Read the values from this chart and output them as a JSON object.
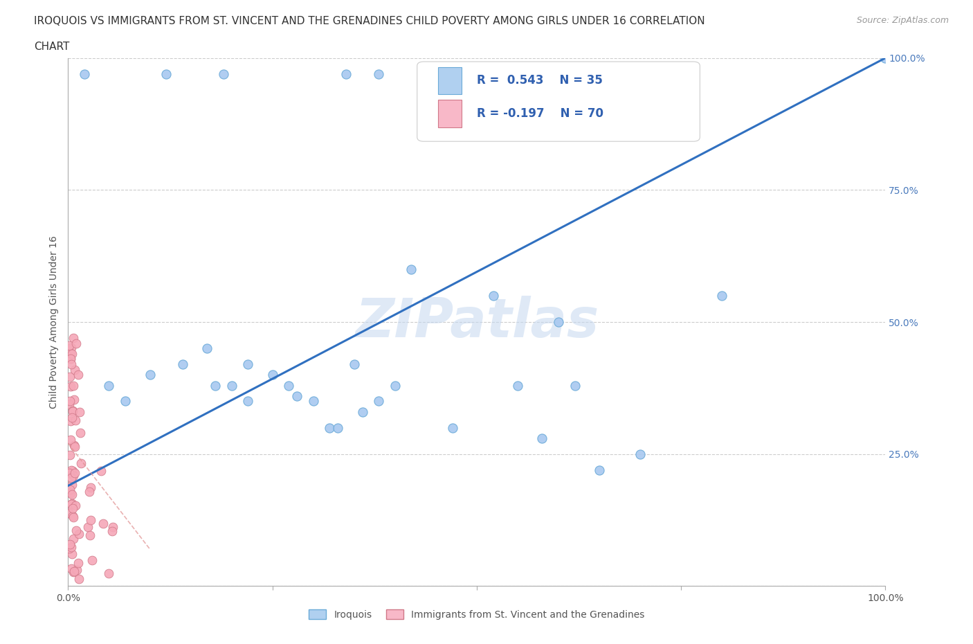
{
  "title_line1": "IROQUOIS VS IMMIGRANTS FROM ST. VINCENT AND THE GRENADINES CHILD POVERTY AMONG GIRLS UNDER 16 CORRELATION",
  "title_line2": "CHART",
  "source_text": "Source: ZipAtlas.com",
  "ylabel": "Child Poverty Among Girls Under 16",
  "xlim": [
    0.0,
    1.0
  ],
  "ylim": [
    0.0,
    1.0
  ],
  "iroquois_color": "#a8c8f0",
  "iroquois_edge": "#6aaad8",
  "immigrants_color": "#f5a8b8",
  "immigrants_edge": "#d07888",
  "trend_iroquois_color": "#3070c0",
  "trend_immigrants_color": "#e09090",
  "legend_box_iroquois": "#b0d0f0",
  "legend_box_immigrants": "#f8b8c8",
  "legend_text_color": "#3060b0",
  "ytick_color": "#4a7abc",
  "R_iroquois": 0.543,
  "N_iroquois": 35,
  "R_immigrants": -0.197,
  "N_immigrants": 70,
  "irq_x": [
    0.02,
    0.12,
    0.19,
    0.34,
    0.38,
    0.05,
    0.07,
    0.1,
    0.14,
    0.17,
    0.2,
    0.22,
    0.25,
    0.27,
    0.18,
    0.32,
    0.35,
    0.38,
    0.22,
    0.28,
    0.3,
    0.33,
    0.36,
    0.4,
    0.42,
    0.47,
    0.52,
    0.55,
    0.6,
    0.62,
    0.65,
    0.7,
    0.58,
    0.8,
    1.0
  ],
  "irq_y": [
    0.97,
    0.97,
    0.97,
    0.97,
    0.97,
    0.38,
    0.35,
    0.4,
    0.42,
    0.45,
    0.38,
    0.35,
    0.4,
    0.38,
    0.38,
    0.3,
    0.42,
    0.35,
    0.42,
    0.36,
    0.35,
    0.3,
    0.33,
    0.38,
    0.6,
    0.3,
    0.55,
    0.38,
    0.5,
    0.38,
    0.22,
    0.25,
    0.28,
    0.55,
    1.0
  ],
  "irq_trend_x0": 0.0,
  "irq_trend_y0": 0.19,
  "irq_trend_x1": 1.0,
  "irq_trend_y1": 1.0,
  "img_trend_x0": 0.0,
  "img_trend_y0": 0.27,
  "img_trend_x1": 0.1,
  "img_trend_y1": 0.07
}
